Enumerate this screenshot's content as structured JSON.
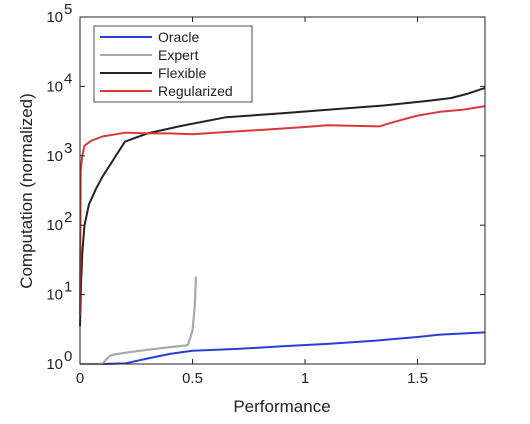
{
  "chart_data": {
    "type": "line",
    "title": "",
    "xlabel": "Performance",
    "ylabel": "Computation (normalized)",
    "xlim": [
      0,
      1.8
    ],
    "ylim": [
      1,
      100000
    ],
    "yscale": "log",
    "grid": false,
    "legend_position": "top-left",
    "x_ticks": [
      {
        "value": 0,
        "label": "0"
      },
      {
        "value": 0.5,
        "label": "0.5"
      },
      {
        "value": 1,
        "label": "1"
      },
      {
        "value": 1.5,
        "label": "1.5"
      }
    ],
    "y_ticks": [
      {
        "value": 1,
        "base": "10",
        "exp": "0"
      },
      {
        "value": 10,
        "base": "10",
        "exp": "1"
      },
      {
        "value": 100,
        "base": "10",
        "exp": "2"
      },
      {
        "value": 1000,
        "base": "10",
        "exp": "3"
      },
      {
        "value": 10000,
        "base": "10",
        "exp": "4"
      },
      {
        "value": 100000,
        "base": "10",
        "exp": "5"
      }
    ],
    "series": [
      {
        "name": "Oracle",
        "color": "#2a3fd6",
        "x": [
          0.0,
          0.1,
          0.2,
          0.3,
          0.4,
          0.5,
          0.7,
          0.9,
          1.1,
          1.3,
          1.5,
          1.6,
          1.7,
          1.8
        ],
        "y": [
          1.0,
          1.0,
          1.02,
          1.2,
          1.4,
          1.55,
          1.65,
          1.8,
          1.95,
          2.15,
          2.45,
          2.65,
          2.75,
          2.85
        ]
      },
      {
        "name": "Expert",
        "color": "#a8aaa8",
        "x": [
          0.0,
          0.1,
          0.12,
          0.14,
          0.2,
          0.3,
          0.4,
          0.47,
          0.48,
          0.5,
          0.51,
          0.515
        ],
        "y": [
          1.0,
          1.0,
          1.2,
          1.35,
          1.45,
          1.6,
          1.75,
          1.85,
          1.9,
          3.0,
          7.0,
          18.0
        ]
      },
      {
        "name": "Flexible",
        "color": "#222222",
        "x": [
          0.0,
          0.005,
          0.01,
          0.02,
          0.04,
          0.07,
          0.1,
          0.15,
          0.2,
          0.3,
          0.45,
          0.65,
          0.9,
          1.1,
          1.35,
          1.55,
          1.65,
          1.72,
          1.8
        ],
        "y": [
          3.5,
          15,
          40,
          100,
          200,
          330,
          500,
          900,
          1600,
          2100,
          2700,
          3600,
          4100,
          4600,
          5300,
          6200,
          6800,
          7800,
          9500
        ]
      },
      {
        "name": "Regularized",
        "color": "#d83a3a",
        "x": [
          0.0,
          0.003,
          0.01,
          0.02,
          0.05,
          0.1,
          0.2,
          0.3,
          0.4,
          0.5,
          0.6,
          0.8,
          1.0,
          1.1,
          1.33,
          1.4,
          1.5,
          1.6,
          1.7,
          1.8
        ],
        "y": [
          5.0,
          600,
          1000,
          1400,
          1650,
          1900,
          2150,
          2100,
          2100,
          2050,
          2150,
          2350,
          2600,
          2750,
          2650,
          3100,
          3800,
          4300,
          4600,
          5200
        ]
      }
    ]
  }
}
